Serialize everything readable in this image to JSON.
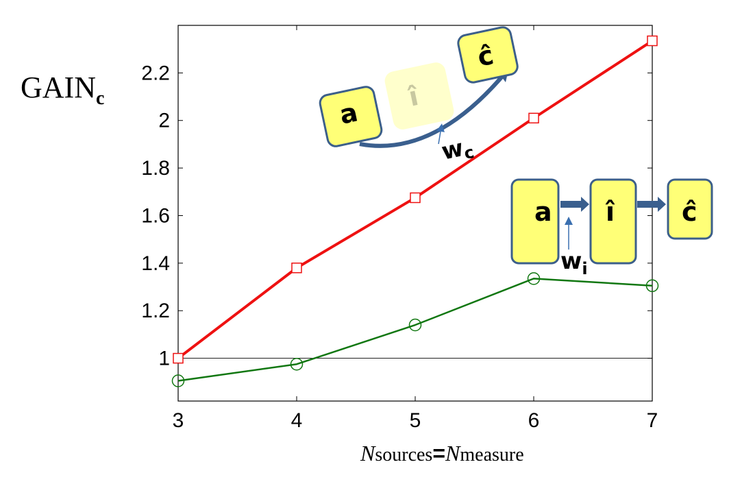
{
  "chart_data": {
    "type": "line",
    "ylabel": "GAIN",
    "ylabel_sub": "c",
    "xlabel_parts": [
      "N",
      "sources",
      "=",
      "N",
      "measure"
    ],
    "x": [
      3,
      4,
      5,
      6,
      7
    ],
    "xlim": [
      3,
      7
    ],
    "ylim": [
      0.82,
      2.4
    ],
    "xticks": [
      3,
      4,
      5,
      6,
      7
    ],
    "yticks": [
      1,
      1.2,
      1.4,
      1.6,
      1.8,
      2,
      2.2
    ],
    "ytick_labels": [
      "1",
      "1.2",
      "1.4",
      "1.6",
      "1.8",
      "2",
      "2.2"
    ],
    "reference_line": 1,
    "grid": false,
    "series": [
      {
        "color": "#ee1111",
        "marker": "square",
        "values": [
          1.0,
          1.38,
          1.675,
          2.01,
          2.335
        ]
      },
      {
        "color": "#117711",
        "marker": "circle",
        "values": [
          0.905,
          0.975,
          1.14,
          1.335,
          1.305
        ]
      }
    ],
    "annotations": {
      "top_diagram": {
        "a": "a",
        "i_hat": "î",
        "c_hat": "ĉ",
        "w": "w",
        "w_sub": "c"
      },
      "bottom_diagram": {
        "a": "a",
        "i_hat": "î",
        "c_hat": "ĉ",
        "w": "w",
        "w_sub": "i"
      }
    },
    "colors": {
      "box_fill": "#ffff77",
      "box_stroke": "#3c5f8a",
      "faded_box": "#ffffcc",
      "arrow": "#3a5f8e"
    }
  }
}
